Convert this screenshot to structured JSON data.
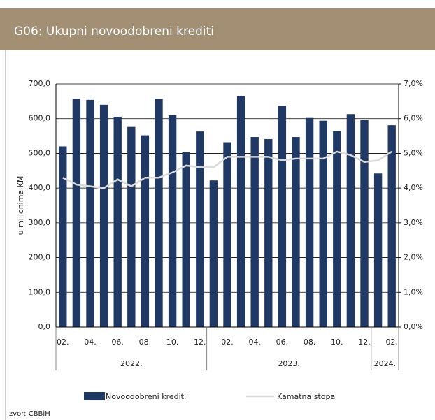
{
  "chart_data": {
    "type": "bar_line",
    "title": "G06: Ukupni novoodobreni krediti",
    "ylabel": "u milionima KM",
    "source": "Izvor: CBBiH",
    "categories": [
      "02.",
      null,
      "04.",
      null,
      "06.",
      null,
      "08.",
      null,
      "10.",
      null,
      "12.",
      null,
      "02.",
      null,
      "04.",
      null,
      "06.",
      null,
      "08.",
      null,
      "10.",
      null,
      "12.",
      null,
      "02."
    ],
    "groups": [
      "2022.",
      "2023.",
      "2024."
    ],
    "series": [
      {
        "name": "Novoodobreni krediti",
        "color": "#1f3864",
        "type": "bar",
        "values": [
          520,
          657,
          654,
          640,
          605,
          576,
          552,
          657,
          610,
          503,
          563,
          422,
          532,
          665,
          547,
          541,
          637,
          547,
          602,
          594,
          564,
          613,
          596,
          442,
          581
        ]
      },
      {
        "name": "Kamatna stopa",
        "color": "#d9d9d9",
        "type": "line",
        "axis": "y2",
        "values": [
          4.3,
          4.1,
          4.05,
          4.0,
          4.25,
          4.05,
          4.3,
          4.3,
          4.45,
          4.65,
          4.6,
          4.6,
          4.9,
          4.9,
          4.9,
          4.9,
          4.8,
          4.85,
          4.85,
          4.85,
          5.05,
          4.95,
          4.75,
          4.8,
          5.05
        ]
      }
    ],
    "ylim": [
      0,
      700
    ],
    "yticks": [
      {
        "value": 0,
        "label": "0,0"
      },
      {
        "value": 100,
        "label": "100,0"
      },
      {
        "value": 200,
        "label": "200,0"
      },
      {
        "value": 300,
        "label": "300,0"
      },
      {
        "value": 400,
        "label": "400,0"
      },
      {
        "value": 500,
        "label": "500,0"
      },
      {
        "value": 600,
        "label": "600,0"
      },
      {
        "value": 700,
        "label": "700,0"
      }
    ],
    "y2lim": [
      0,
      7
    ],
    "y2ticks": [
      {
        "value": 0,
        "label": "0,0%"
      },
      {
        "value": 1,
        "label": "1,0%"
      },
      {
        "value": 2,
        "label": "2,0%"
      },
      {
        "value": 3,
        "label": "3,0%"
      },
      {
        "value": 4,
        "label": "4,0%"
      },
      {
        "value": 5,
        "label": "5,0%"
      },
      {
        "value": 6,
        "label": "6,0%"
      },
      {
        "value": 7,
        "label": "7,0%"
      }
    ],
    "grid": true
  }
}
